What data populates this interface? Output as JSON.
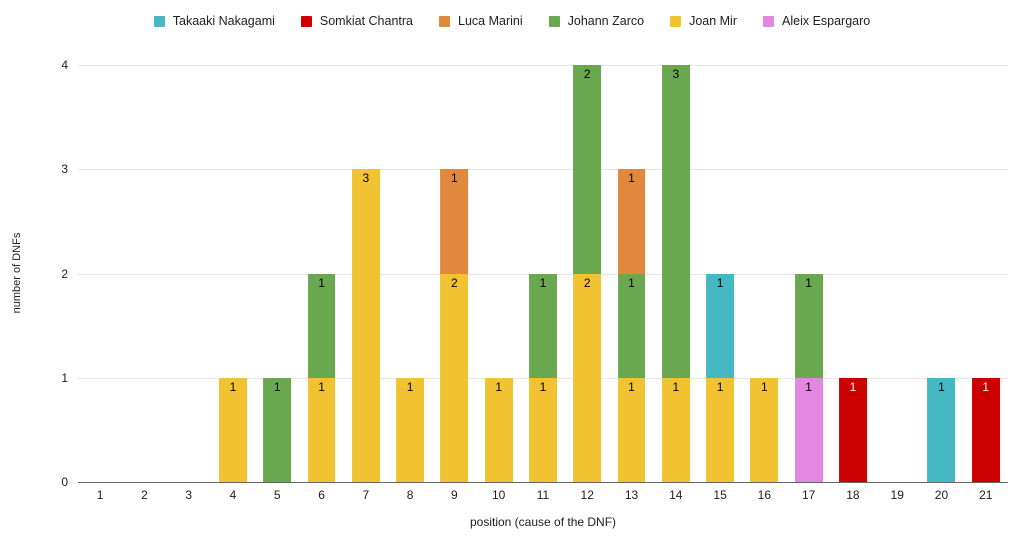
{
  "chart_data": {
    "type": "bar",
    "stacked": true,
    "title": "",
    "xlabel": "position (cause of the DNF)",
    "ylabel": "number of DNFs",
    "ylim": [
      0,
      4
    ],
    "yticks": [
      0,
      1,
      2,
      3,
      4
    ],
    "categories": [
      "1",
      "2",
      "3",
      "4",
      "5",
      "6",
      "7",
      "8",
      "9",
      "10",
      "11",
      "12",
      "13",
      "14",
      "15",
      "16",
      "17",
      "18",
      "19",
      "20",
      "21"
    ],
    "legend_position": "top",
    "grid": true,
    "gridline_color": "#E6E6E6",
    "baseline_color": "#666666",
    "text_color": "#212121",
    "series": [
      {
        "name": "Takaaki Nakagami",
        "color": "#45B8C4",
        "label_color": "#000000",
        "values": [
          0,
          0,
          0,
          0,
          0,
          0,
          0,
          0,
          0,
          0,
          0,
          0,
          0,
          0,
          1,
          0,
          0,
          0,
          0,
          1,
          0
        ]
      },
      {
        "name": "Somkiat Chantra",
        "color": "#CC0000",
        "label_color": "#FFFFFF",
        "values": [
          0,
          0,
          0,
          0,
          0,
          0,
          0,
          0,
          0,
          0,
          0,
          0,
          0,
          0,
          0,
          0,
          0,
          1,
          0,
          0,
          1
        ]
      },
      {
        "name": "Luca Marini",
        "color": "#E0883C",
        "label_color": "#000000",
        "values": [
          0,
          0,
          0,
          0,
          0,
          0,
          0,
          0,
          1,
          0,
          0,
          0,
          1,
          0,
          0,
          0,
          0,
          0,
          0,
          0,
          0
        ]
      },
      {
        "name": "Johann Zarco",
        "color": "#6AA84F",
        "label_color": "#000000",
        "values": [
          0,
          0,
          0,
          0,
          1,
          1,
          0,
          0,
          0,
          0,
          1,
          2,
          1,
          3,
          0,
          0,
          1,
          0,
          0,
          0,
          0
        ]
      },
      {
        "name": "Joan Mir",
        "color": "#F1C232",
        "label_color": "#000000",
        "values": [
          0,
          0,
          0,
          1,
          0,
          1,
          3,
          1,
          2,
          1,
          1,
          2,
          1,
          1,
          1,
          1,
          0,
          0,
          0,
          0,
          0
        ]
      },
      {
        "name": "Aleix Espargaro",
        "color": "#E287E2",
        "label_color": "#000000",
        "values": [
          0,
          0,
          0,
          0,
          0,
          0,
          0,
          0,
          0,
          0,
          0,
          0,
          0,
          0,
          0,
          0,
          1,
          0,
          0,
          0,
          0
        ]
      }
    ],
    "stack_order": [
      "Joan Mir",
      "Aleix Espargaro",
      "Takaaki Nakagami",
      "Johann Zarco",
      "Luca Marini",
      "Somkiat Chantra"
    ]
  }
}
